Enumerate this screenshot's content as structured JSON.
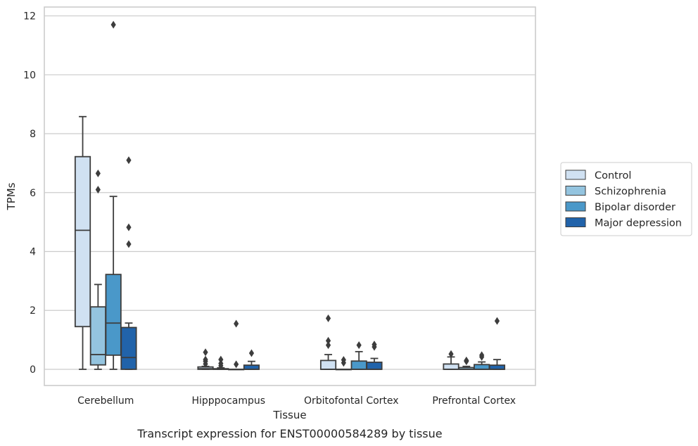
{
  "chart_data": {
    "type": "box",
    "title": "",
    "caption": "Transcript expression for ENST00000584289 by tissue",
    "xlabel": "Tissue",
    "ylabel": "TPMs",
    "ylim": [
      -0.55,
      12.3
    ],
    "yticks": [
      0,
      2,
      4,
      6,
      8,
      10,
      12
    ],
    "grid": "horizontal",
    "legend_position": "right",
    "categories": [
      "Cerebellum",
      "Hipppocampus",
      "Orbitofontal Cortex",
      "Prefrontal Cortex"
    ],
    "series": [
      {
        "name": "Control",
        "color": "#d0e1f2",
        "boxes": [
          {
            "whisker_low": 0,
            "q1": 1.45,
            "median": 4.72,
            "q3": 7.22,
            "whisker_high": 8.58,
            "outliers": []
          },
          {
            "whisker_low": 0,
            "q1": 0.0,
            "median": 0.02,
            "q3": 0.08,
            "whisker_high": 0.1,
            "outliers": [
              0.18,
              0.27,
              0.33,
              0.58
            ]
          },
          {
            "whisker_low": 0,
            "q1": 0.0,
            "median": 0.0,
            "q3": 0.3,
            "whisker_high": 0.5,
            "outliers": [
              0.82,
              0.97,
              1.73
            ]
          },
          {
            "whisker_low": 0,
            "q1": 0.0,
            "median": 0.0,
            "q3": 0.18,
            "whisker_high": 0.42,
            "outliers": [
              0.52
            ]
          }
        ]
      },
      {
        "name": "Schizophrenia",
        "color": "#94c4df",
        "boxes": [
          {
            "whisker_low": 0,
            "q1": 0.15,
            "median": 0.5,
            "q3": 2.12,
            "whisker_high": 2.88,
            "outliers": [
              6.1,
              6.65
            ]
          },
          {
            "whisker_low": 0,
            "q1": 0.0,
            "median": 0.0,
            "q3": 0.02,
            "whisker_high": 0.05,
            "outliers": [
              0.12,
              0.2,
              0.33
            ]
          },
          {
            "whisker_low": 0,
            "q1": 0.0,
            "median": 0.0,
            "q3": 0.0,
            "whisker_high": 0.0,
            "outliers": [
              0.22,
              0.32
            ]
          },
          {
            "whisker_low": 0,
            "q1": 0.0,
            "median": 0.0,
            "q3": 0.06,
            "whisker_high": 0.1,
            "outliers": [
              0.27,
              0.3
            ]
          }
        ]
      },
      {
        "name": "Bipolar disorder",
        "color": "#4a98c9",
        "boxes": [
          {
            "whisker_low": 0,
            "q1": 0.48,
            "median": 1.57,
            "q3": 3.22,
            "whisker_high": 5.87,
            "outliers": [
              11.7
            ]
          },
          {
            "whisker_low": 0,
            "q1": 0.0,
            "median": 0.0,
            "q3": 0.0,
            "whisker_high": 0.0,
            "outliers": [
              0.17,
              1.55
            ]
          },
          {
            "whisker_low": 0,
            "q1": 0.0,
            "median": 0.0,
            "q3": 0.28,
            "whisker_high": 0.6,
            "outliers": [
              0.82
            ]
          },
          {
            "whisker_low": 0,
            "q1": 0.0,
            "median": 0.0,
            "q3": 0.16,
            "whisker_high": 0.25,
            "outliers": [
              0.42,
              0.48
            ]
          }
        ]
      },
      {
        "name": "Major depression",
        "color": "#2163aa",
        "boxes": [
          {
            "whisker_low": 0,
            "q1": 0.0,
            "median": 0.4,
            "q3": 1.42,
            "whisker_high": 1.57,
            "outliers": [
              4.25,
              4.82,
              7.1
            ]
          },
          {
            "whisker_low": 0,
            "q1": 0.0,
            "median": 0.0,
            "q3": 0.14,
            "whisker_high": 0.27,
            "outliers": [
              0.55
            ]
          },
          {
            "whisker_low": 0,
            "q1": 0.0,
            "median": 0.0,
            "q3": 0.24,
            "whisker_high": 0.37,
            "outliers": [
              0.76,
              0.84
            ]
          },
          {
            "whisker_low": 0,
            "q1": 0.0,
            "median": 0.0,
            "q3": 0.14,
            "whisker_high": 0.33,
            "outliers": [
              1.64
            ]
          }
        ]
      }
    ]
  }
}
